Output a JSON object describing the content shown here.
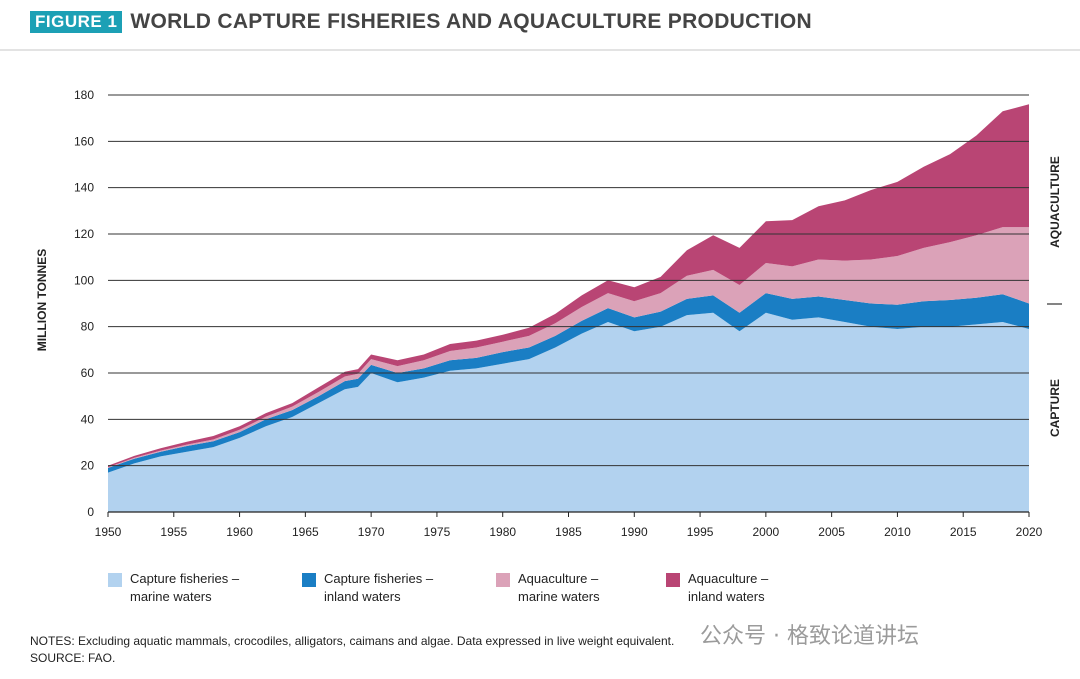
{
  "header": {
    "badge": "FIGURE 1",
    "title": "WORLD CAPTURE FISHERIES AND AQUACULTURE PRODUCTION"
  },
  "chart_data": {
    "type": "area",
    "stacked": true,
    "ylabel": "MILLION TONNES",
    "ylim": [
      0,
      180
    ],
    "yticks": [
      0,
      20,
      40,
      60,
      80,
      100,
      120,
      140,
      160,
      180
    ],
    "xlim": [
      1950,
      2020
    ],
    "xticks": [
      1950,
      1955,
      1960,
      1965,
      1970,
      1975,
      1980,
      1985,
      1990,
      1995,
      2000,
      2005,
      2010,
      2015,
      2020
    ],
    "x": [
      1950,
      1952,
      1954,
      1956,
      1958,
      1960,
      1962,
      1964,
      1966,
      1968,
      1969,
      1970,
      1972,
      1974,
      1976,
      1978,
      1980,
      1982,
      1984,
      1986,
      1988,
      1990,
      1992,
      1994,
      1996,
      1998,
      2000,
      2002,
      2004,
      2006,
      2008,
      2010,
      2012,
      2014,
      2016,
      2018,
      2020
    ],
    "series": [
      {
        "name": "Capture fisheries – marine waters",
        "color": "#b2d2ef",
        "values": [
          17,
          21,
          24,
          26,
          28,
          32,
          37,
          41,
          47,
          53,
          54,
          60,
          56,
          58,
          61,
          62,
          64,
          66,
          71,
          77,
          82,
          78,
          80,
          85,
          86,
          78,
          86,
          83,
          84,
          82,
          80,
          79,
          80,
          80,
          81,
          82,
          79
        ]
      },
      {
        "name": "Capture fisheries – inland waters",
        "color": "#1a7ec4",
        "values": [
          2,
          2,
          2,
          2.5,
          2.5,
          2.5,
          3,
          3,
          3,
          3.5,
          3.5,
          3.5,
          4,
          4,
          4.5,
          4.5,
          5,
          5,
          5,
          5.5,
          6,
          6,
          6.5,
          7,
          7.5,
          8,
          8.5,
          9,
          9,
          9.5,
          10,
          10.5,
          11,
          11.5,
          11.5,
          12,
          11
        ]
      },
      {
        "name": "Aquaculture – marine waters",
        "color": "#dba2b8",
        "values": [
          0.3,
          0.4,
          0.5,
          0.6,
          0.8,
          1,
          1.2,
          1.5,
          1.8,
          2,
          2.2,
          2.5,
          3,
          3.5,
          4,
          4.5,
          4.5,
          5,
          5.5,
          6,
          6.5,
          7,
          8,
          10,
          11,
          12,
          13,
          14,
          16,
          17,
          19,
          21,
          23,
          25,
          27,
          29,
          33
        ]
      },
      {
        "name": "Aquaculture – inland waters",
        "color": "#b94574",
        "values": [
          0.7,
          0.8,
          1,
          1.2,
          1.5,
          1.5,
          1.5,
          1.5,
          2,
          2,
          2,
          2,
          2.5,
          2.5,
          3,
          3,
          3,
          3.5,
          4,
          5,
          5.5,
          6,
          7,
          11,
          15,
          16,
          18,
          20,
          23,
          26,
          30,
          32,
          35,
          38,
          43,
          50,
          53
        ]
      }
    ],
    "right_labels": {
      "upper": "AQUACULTURE",
      "lower": "CAPTURE"
    },
    "legend_lines": [
      [
        "Capture fisheries –",
        "marine waters"
      ],
      [
        "Capture fisheries –",
        "inland waters"
      ],
      [
        "Aquaculture –",
        "marine waters"
      ],
      [
        "Aquaculture –",
        "inland waters"
      ]
    ]
  },
  "notes": {
    "line1": "NOTES: Excluding aquatic mammals, crocodiles, alligators, caimans and algae. Data expressed in live weight equivalent.",
    "line2": "SOURCE: FAO."
  },
  "watermark": "公众号 · 格致论道讲坛"
}
